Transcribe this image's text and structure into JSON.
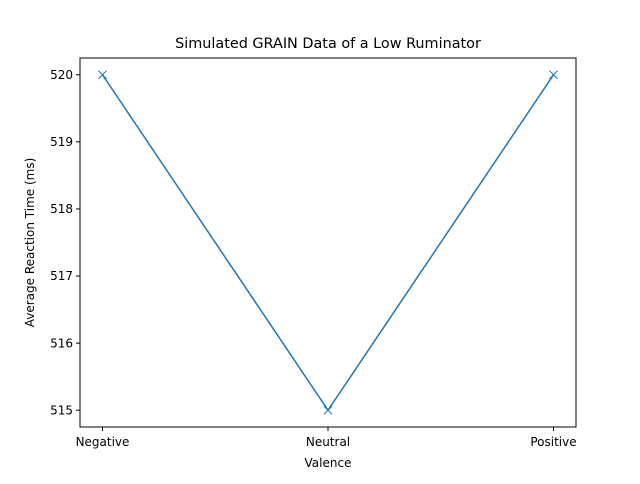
{
  "chart_data": {
    "type": "line",
    "title": "Simulated GRAIN Data of a Low Ruminator",
    "xlabel": "Valence",
    "ylabel": "Average Reaction Time (ms)",
    "categories": [
      "Negative",
      "Neutral",
      "Positive"
    ],
    "series": [
      {
        "values": [
          520,
          515,
          520
        ],
        "color": "#1f77b4",
        "marker": "x"
      }
    ],
    "ylim": [
      514.75,
      520.25
    ],
    "yticks": [
      515,
      516,
      517,
      518,
      519,
      520
    ],
    "ytick_labels": [
      "515",
      "516",
      "517",
      "518",
      "519",
      "520"
    ],
    "grid": false,
    "legend": "none"
  }
}
